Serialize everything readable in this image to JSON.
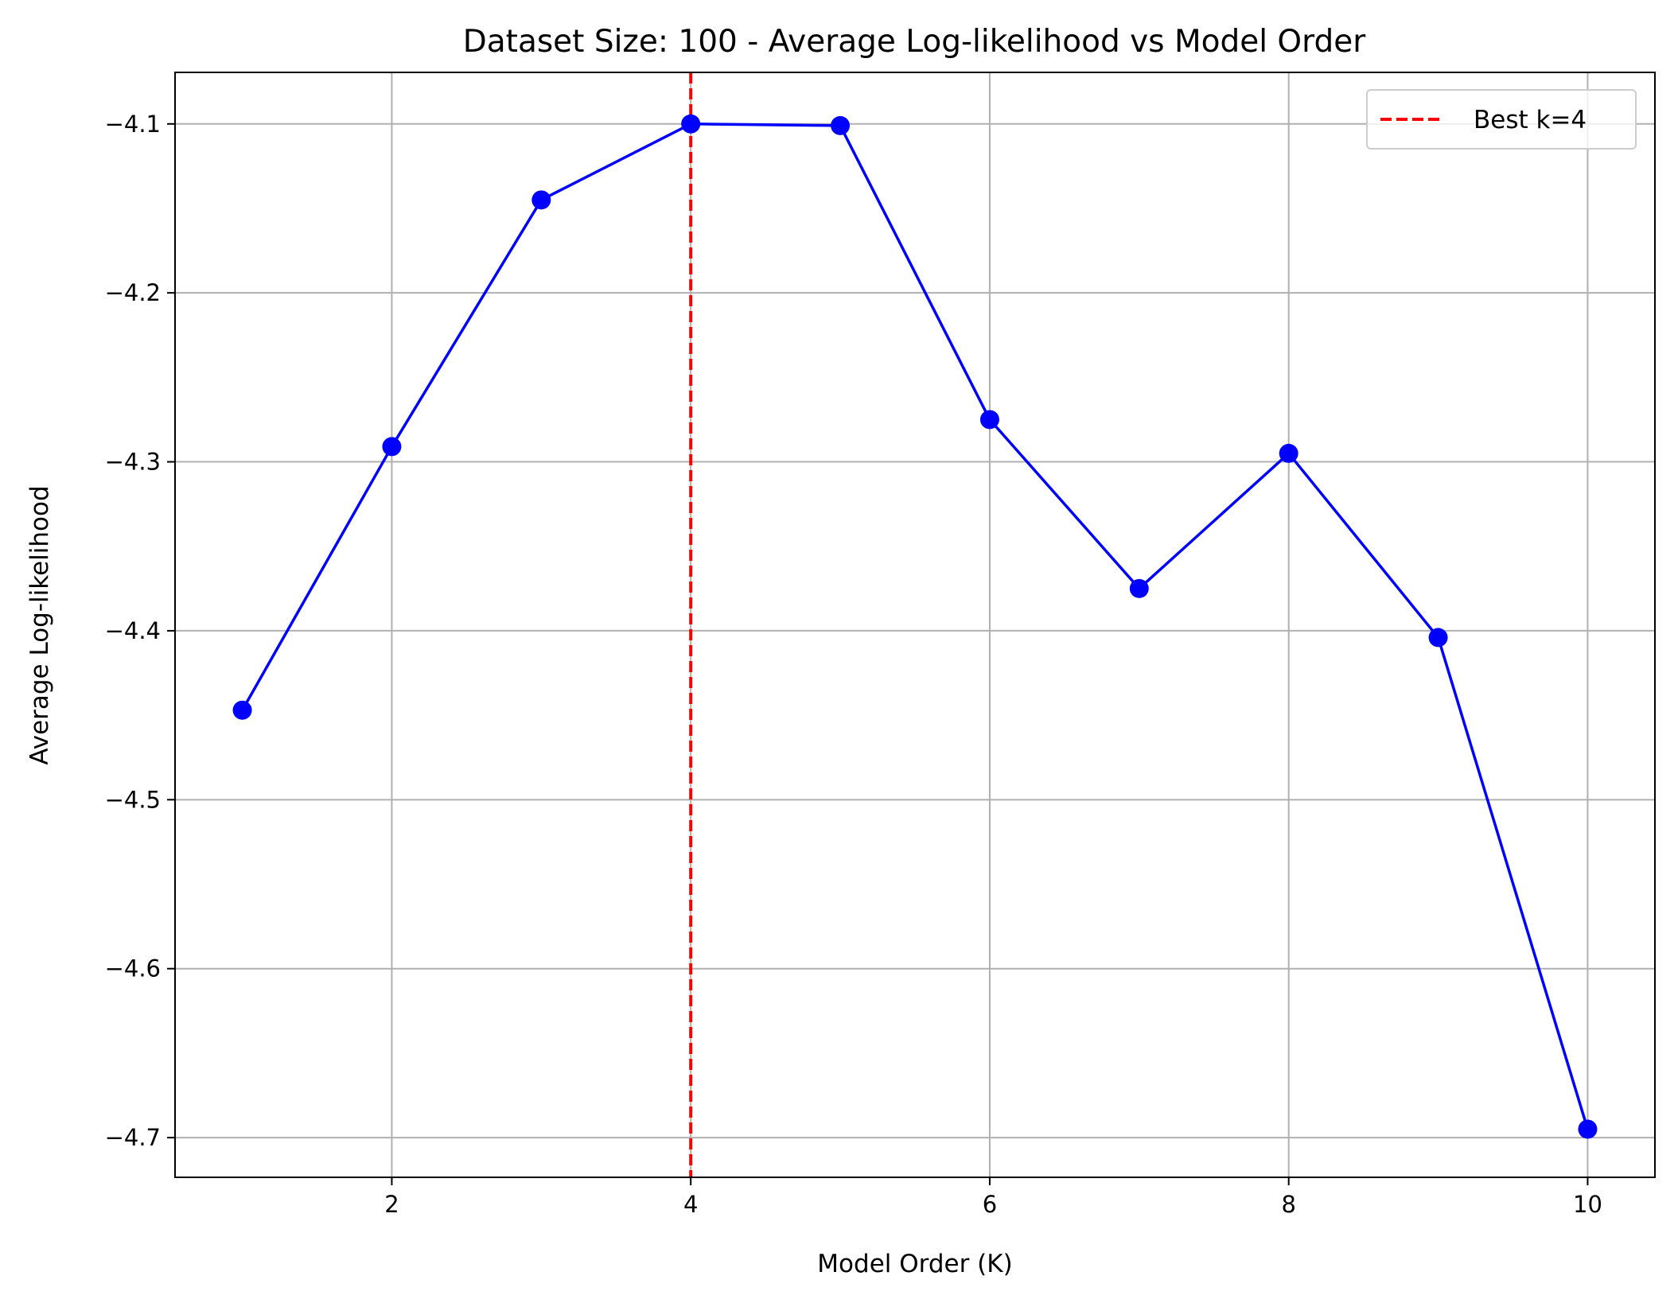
{
  "chart_data": {
    "type": "line",
    "title": "Dataset Size: 100 - Average Log-likelihood vs Model Order",
    "xlabel": "Model Order (K)",
    "ylabel": "Average Log-likelihood",
    "xlim": [
      0.55,
      10.45
    ],
    "ylim": [
      -4.7235,
      -4.0695
    ],
    "xticks": [
      2,
      4,
      6,
      8,
      10
    ],
    "xtick_labels": [
      "2",
      "4",
      "6",
      "8",
      "10"
    ],
    "yticks": [
      -4.1,
      -4.2,
      -4.3,
      -4.4,
      -4.5,
      -4.6,
      -4.7
    ],
    "ytick_labels": [
      "−4.1",
      "−4.2",
      "−4.3",
      "−4.4",
      "−4.5",
      "−4.6",
      "−4.7"
    ],
    "grid": true,
    "legend": {
      "placement": "top-right",
      "entries": [
        "Best k=4"
      ]
    },
    "series": [
      {
        "color": "#0000ff",
        "marker": "circle",
        "x": [
          1,
          2,
          3,
          4,
          5,
          6,
          7,
          8,
          9,
          10
        ],
        "y": [
          -4.447,
          -4.291,
          -4.145,
          -4.1,
          -4.101,
          -4.275,
          -4.375,
          -4.295,
          -4.404,
          -4.695
        ]
      }
    ],
    "reference_line": {
      "orientation": "vertical",
      "x": 4,
      "label": "Best k=4",
      "color": "#ff0000",
      "style": "dashed"
    }
  }
}
